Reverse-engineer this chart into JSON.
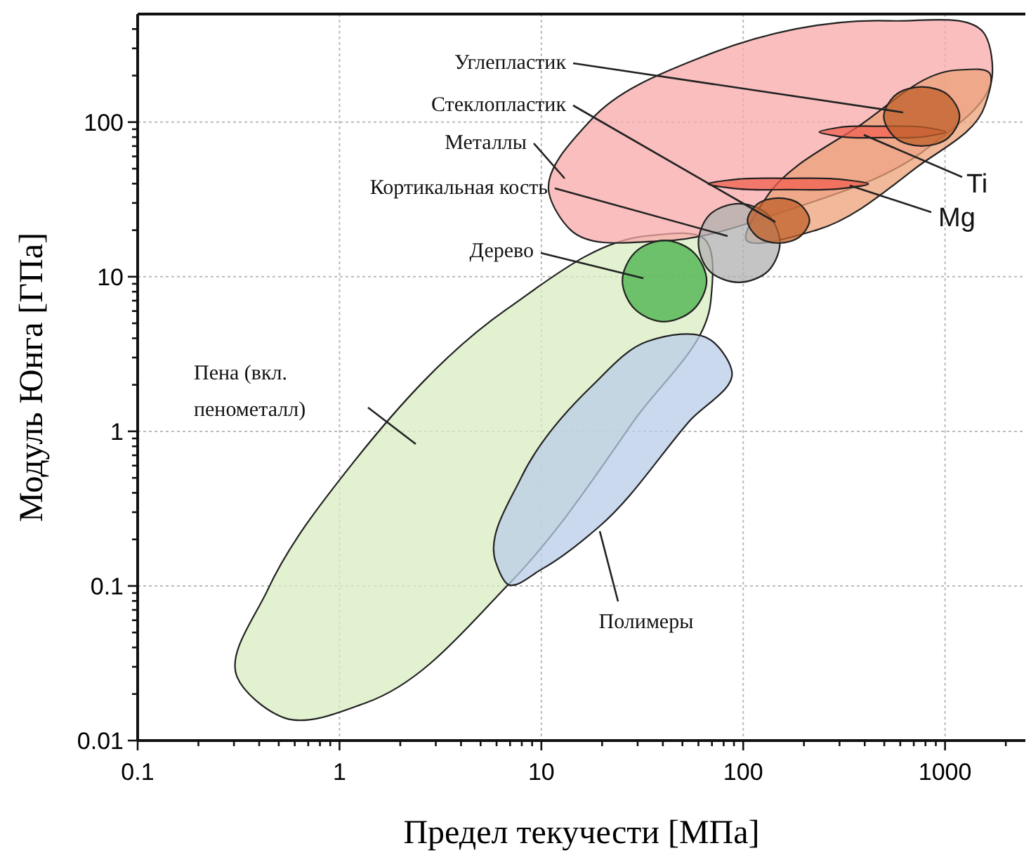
{
  "chart_data": {
    "type": "area",
    "xlabel": "Предел текучести [МПа]",
    "ylabel": "Модуль Юнга [ГПа]",
    "log": "xy",
    "grid": true,
    "xlim": [
      0.1,
      2500
    ],
    "ylim": [
      0.01,
      500
    ],
    "xticks": [
      0.1,
      {
        "value": 0.2,
        "label": null
      },
      {
        "value": 0.3,
        "label": null
      },
      {
        "value": 0.4,
        "label": null
      },
      {
        "value": 0.5,
        "label": null
      },
      {
        "value": 0.6,
        "label": null
      },
      {
        "value": 0.7,
        "label": null
      },
      {
        "value": 0.8,
        "label": null
      },
      {
        "value": 0.9,
        "label": null
      },
      1,
      {
        "value": 2,
        "label": null
      },
      {
        "value": 3,
        "label": null
      },
      {
        "value": 4,
        "label": null
      },
      {
        "value": 5,
        "label": null
      },
      {
        "value": 6,
        "label": null
      },
      {
        "value": 7,
        "label": null
      },
      {
        "value": 8,
        "label": null
      },
      {
        "value": 9,
        "label": null
      },
      10,
      {
        "value": 20,
        "label": null
      },
      {
        "value": 30,
        "label": null
      },
      {
        "value": 40,
        "label": null
      },
      {
        "value": 50,
        "label": null
      },
      {
        "value": 60,
        "label": null
      },
      {
        "value": 70,
        "label": null
      },
      {
        "value": 80,
        "label": null
      },
      {
        "value": 90,
        "label": null
      },
      100,
      {
        "value": 200,
        "label": null
      },
      {
        "value": 300,
        "label": null
      },
      {
        "value": 400,
        "label": null
      },
      {
        "value": 500,
        "label": null
      },
      {
        "value": 600,
        "label": null
      },
      {
        "value": 700,
        "label": null
      },
      {
        "value": 800,
        "label": null
      },
      {
        "value": 900,
        "label": null
      },
      1000,
      {
        "value": 2000,
        "label": null
      }
    ],
    "yticks": [
      0.01,
      {
        "value": 0.02,
        "label": null
      },
      {
        "value": 0.03,
        "label": null
      },
      {
        "value": 0.04,
        "label": null
      },
      {
        "value": 0.05,
        "label": null
      },
      {
        "value": 0.06,
        "label": null
      },
      {
        "value": 0.07,
        "label": null
      },
      {
        "value": 0.08,
        "label": null
      },
      {
        "value": 0.09,
        "label": null
      },
      0.1,
      {
        "value": 0.2,
        "label": null
      },
      {
        "value": 0.3,
        "label": null
      },
      {
        "value": 0.4,
        "label": null
      },
      {
        "value": 0.5,
        "label": null
      },
      {
        "value": 0.6,
        "label": null
      },
      {
        "value": 0.7,
        "label": null
      },
      {
        "value": 0.8,
        "label": null
      },
      {
        "value": 0.9,
        "label": null
      },
      1,
      {
        "value": 2,
        "label": null
      },
      {
        "value": 3,
        "label": null
      },
      {
        "value": 4,
        "label": null
      },
      {
        "value": 5,
        "label": null
      },
      {
        "value": 6,
        "label": null
      },
      {
        "value": 7,
        "label": null
      },
      {
        "value": 8,
        "label": null
      },
      {
        "value": 9,
        "label": null
      },
      10,
      {
        "value": 20,
        "label": null
      },
      {
        "value": 30,
        "label": null
      },
      {
        "value": 40,
        "label": null
      },
      {
        "value": 50,
        "label": null
      },
      {
        "value": 60,
        "label": null
      },
      {
        "value": 70,
        "label": null
      },
      {
        "value": 80,
        "label": null
      },
      {
        "value": 90,
        "label": null
      },
      100,
      {
        "value": 200,
        "label": null
      },
      {
        "value": 300,
        "label": null
      },
      {
        "value": 400,
        "label": null
      }
    ],
    "series": [
      {
        "name": "Пена (вкл.\nпенометалл)",
        "color": "#d8ecc0",
        "x": [
          0.31,
          0.535,
          1.36,
          6.86,
          28.6,
          69,
          64,
          33.6,
          6.75,
          1.16,
          0.44
        ],
        "values": [
          0.026,
          0.014,
          0.0176,
          0.102,
          1.16,
          6.86,
          17.6,
          18.4,
          6.18,
          0.62,
          0.094
        ]
      },
      {
        "name": "Полимеры",
        "color": "#b8cce8",
        "x": [
          6.86,
          5.94,
          7.93,
          17.7,
          33.6,
          69,
          88,
          54,
          19.2,
          10.1
        ],
        "values": [
          0.102,
          0.143,
          0.5,
          1.95,
          3.82,
          3.9,
          2.41,
          1.16,
          0.24,
          0.129
        ]
      },
      {
        "name": "Металлы",
        "color": "#f8a8a8",
        "x": [
          10.9,
          17.7,
          64,
          540,
          1580,
          1710,
          830,
          167,
          39,
          14
        ],
        "values": [
          35,
          104,
          267,
          452,
          366,
          195,
          69,
          27,
          17,
          20
        ]
      },
      {
        "color": "#eca078",
        "x": [
          103,
          131,
          373,
          1150,
          1660,
          1580,
          708,
          230
        ],
        "values": [
          17.6,
          33,
          94,
          217,
          208,
          129,
          50,
          20
        ]
      },
      {
        "name": "Кортикальная кость",
        "color": "#b0b0b0",
        "x": [
          152,
          133,
          95,
          68,
          60,
          68,
          95,
          133
        ],
        "values": [
          16.5,
          10.9,
          9.2,
          10.9,
          16.5,
          25.1,
          29.7,
          25.1
        ]
      },
      {
        "name": "Дерево",
        "color": "#44b048",
        "x": [
          65.9,
          57,
          40.7,
          29,
          25.2,
          29,
          40.7,
          57
        ],
        "values": [
          9.4,
          6.18,
          5.12,
          6.18,
          9.4,
          14.3,
          17.2,
          14.3
        ]
      },
      {
        "name": "Ti",
        "color": "#f06050",
        "x": [
          1010,
          818,
          490,
          293,
          238,
          293,
          490,
          818
        ],
        "values": [
          86.4,
          81.1,
          79.4,
          81.1,
          86.4,
          92,
          94,
          92
        ]
      },
      {
        "name": "Mg",
        "color": "#f06050",
        "x": [
          417,
          318,
          167,
          88,
          67,
          88,
          167,
          318
        ],
        "values": [
          39.8,
          37.4,
          36.6,
          37.4,
          39.8,
          42.4,
          43.3,
          42.4
        ]
      },
      {
        "name": "Углепластик",
        "color": "#c0602a",
        "x": [
          1180,
          1040,
          767,
          566,
          497,
          566,
          767,
          1040
        ],
        "values": [
          109,
          79.4,
          70,
          79.4,
          109,
          149,
          169,
          149
        ]
      },
      {
        "name": "Стеклопластик",
        "color": "#c0602a",
        "x": [
          213,
          193,
          149,
          116,
          105,
          116,
          149,
          193
        ],
        "values": [
          23.1,
          18.4,
          16.5,
          18.4,
          23.1,
          29.1,
          32.3,
          29.1
        ]
      }
    ]
  }
}
